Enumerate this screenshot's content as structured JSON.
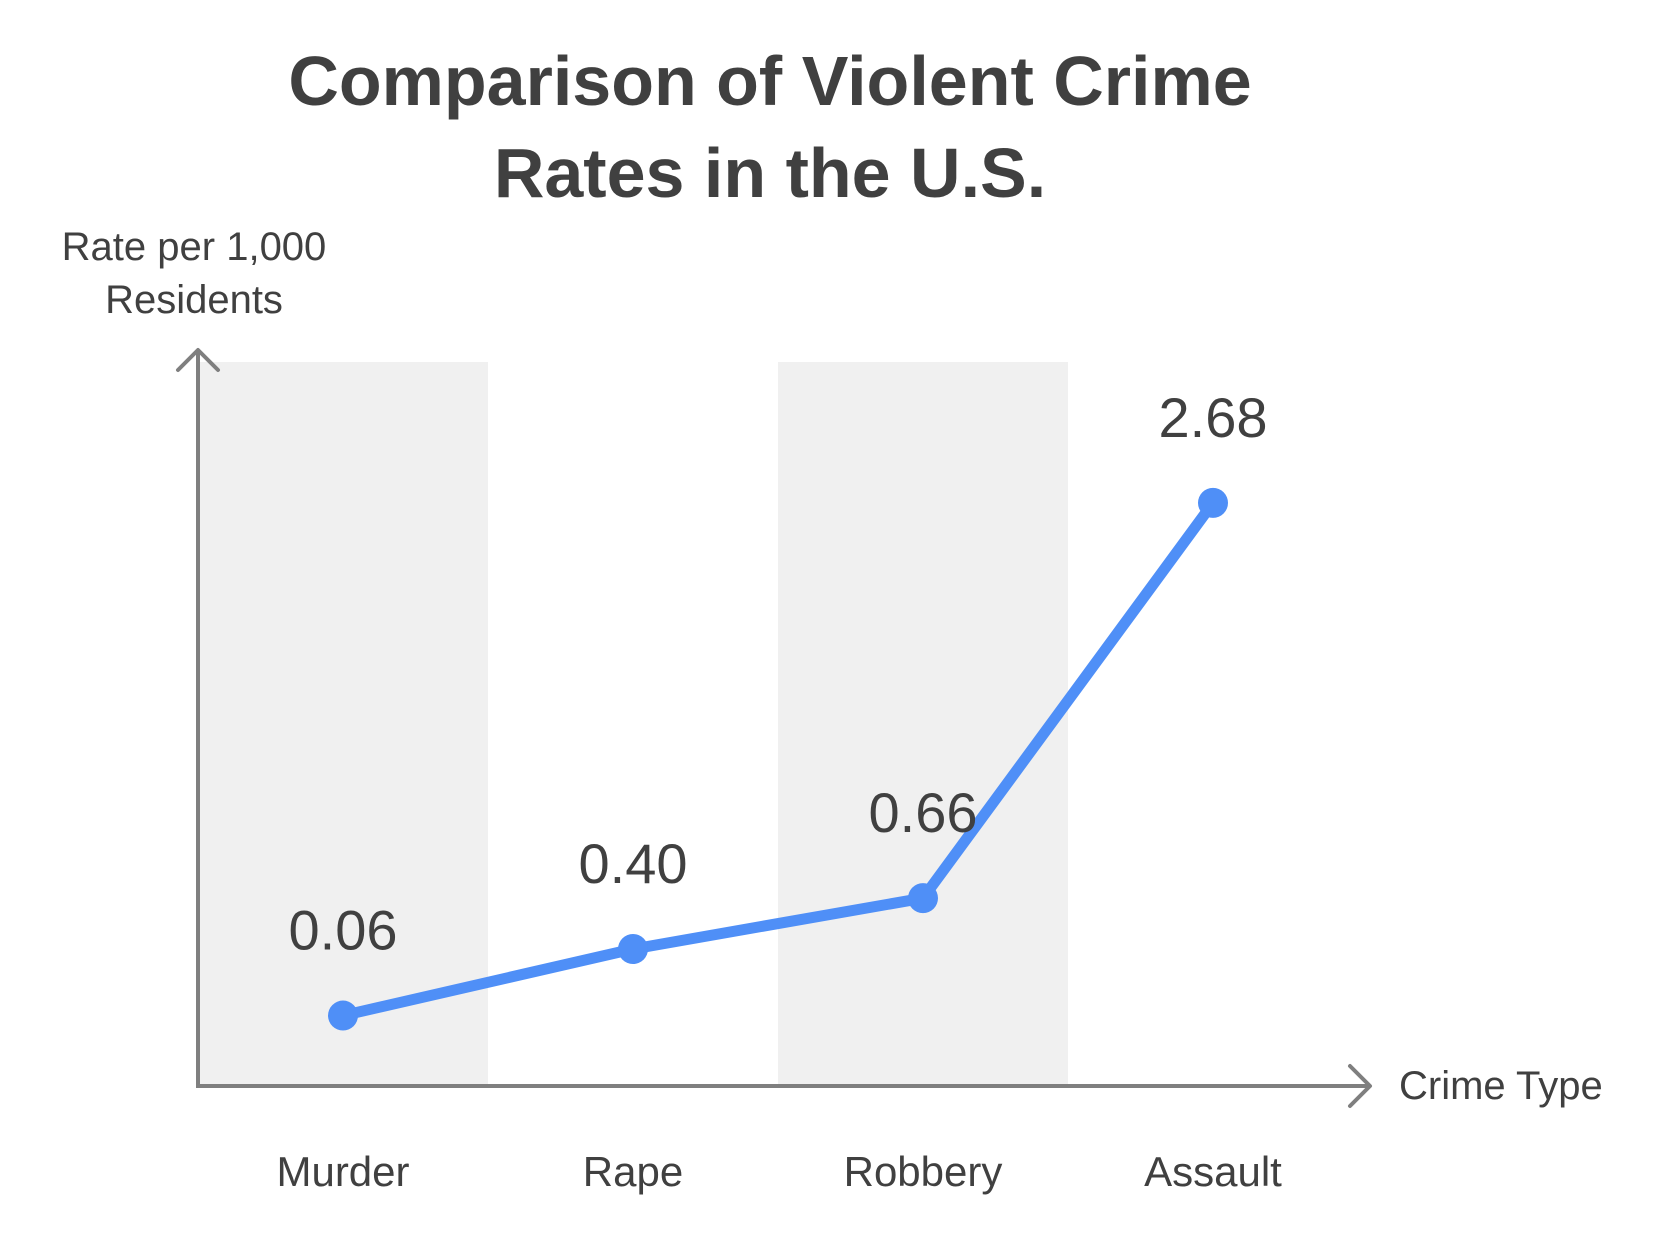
{
  "chart_data": {
    "type": "line",
    "title": "Comparison of Violent Crime Rates in the U.S.",
    "title_lines": [
      "Comparison of Violent Crime",
      "Rates in the U.S."
    ],
    "ylabel": "Rate per 1,000 Residents",
    "ylabel_lines": [
      "Rate per 1,000",
      "Residents"
    ],
    "xlabel": "Crime Type",
    "categories": [
      "Murder",
      "Rape",
      "Robbery",
      "Assault"
    ],
    "values": [
      0.06,
      0.4,
      0.66,
      2.68
    ],
    "value_labels": [
      "0.06",
      "0.40",
      "0.66",
      "2.68"
    ],
    "ylim": [
      -0.3,
      3.4
    ],
    "grid": false,
    "band_shading": "alternating",
    "colors": {
      "line": "#4F8FF7",
      "band": "#F0F0F0",
      "axis": "#7F7F7F",
      "text": "#404040"
    }
  }
}
